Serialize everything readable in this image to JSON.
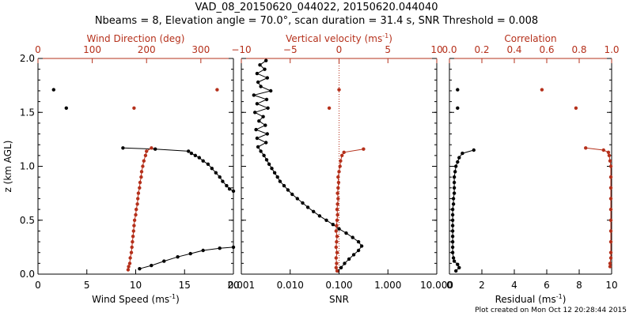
{
  "header": {
    "title": "VAD_08_20150620_044022, 20150620.044040",
    "subtitle": "Nbeams = 8, Elevation angle = 70.0°, scan duration = 31.4 s, SNR Threshold = 0.008"
  },
  "footer": "Plot created on Mon Oct 12 20:28:44 2015",
  "colors": {
    "black": "#000000",
    "red": "#b5301b"
  },
  "chart_data": [
    {
      "panel": "wind",
      "type": "scatter",
      "ylabel": "z (km AGL)",
      "ylim": [
        0,
        2
      ],
      "yticks": [
        "0.0",
        "0.5",
        "1.0",
        "1.5",
        "2.0"
      ],
      "x_bottom": {
        "label": "Wind Speed (ms",
        "label_sup": "-1",
        "label_end": ")",
        "lim": [
          0,
          20
        ],
        "ticks": [
          "0",
          "5",
          "10",
          "15",
          "20"
        ]
      },
      "x_top": {
        "label": "Wind Direction (deg)",
        "lim": [
          0,
          360
        ],
        "ticks": [
          "0",
          "100",
          "200",
          "300"
        ]
      },
      "series": [
        {
          "axis": "bottom",
          "color": "#000000",
          "connected": true,
          "name": "",
          "z": [
            0.05,
            0.08,
            0.12,
            0.16,
            0.19,
            0.22,
            0.24,
            0.25
          ],
          "x": [
            10.4,
            11.6,
            12.9,
            14.3,
            15.6,
            16.9,
            18.6,
            20.0
          ]
        },
        {
          "axis": "bottom",
          "color": "#000000",
          "connected": true,
          "name": "",
          "z": [
            0.77,
            0.79,
            0.82,
            0.86,
            0.9,
            0.94,
            0.98,
            1.02,
            1.05,
            1.08,
            1.1,
            1.12,
            1.14,
            1.16,
            1.17
          ],
          "x": [
            20.0,
            19.6,
            19.3,
            18.9,
            18.6,
            18.2,
            17.8,
            17.4,
            16.9,
            16.5,
            16.1,
            15.7,
            15.4,
            12.0,
            8.7
          ]
        },
        {
          "axis": "bottom",
          "color": "#000000",
          "connected": false,
          "name": "",
          "z": [
            1.71,
            1.54
          ],
          "x": [
            1.6,
            2.9
          ]
        },
        {
          "axis": "top",
          "color": "#b5301b",
          "connected": true,
          "name": "",
          "z": [
            0.04,
            0.07,
            0.1,
            0.15,
            0.2,
            0.25,
            0.3,
            0.35,
            0.4,
            0.45,
            0.5,
            0.55,
            0.6,
            0.65,
            0.7,
            0.75,
            0.8,
            0.85,
            0.9,
            0.95,
            1.0,
            1.05,
            1.1,
            1.14,
            1.17
          ],
          "x": [
            166,
            167,
            169,
            170,
            172,
            173,
            174,
            175,
            176,
            177,
            178,
            180,
            181,
            183,
            184,
            185,
            187,
            188,
            190,
            191,
            193,
            195,
            198,
            200,
            209
          ]
        },
        {
          "axis": "top",
          "color": "#b5301b",
          "connected": false,
          "name": "",
          "z": [
            1.71,
            1.54
          ],
          "x": [
            330,
            177
          ]
        }
      ]
    },
    {
      "panel": "velocity",
      "type": "scatter",
      "ylim": [
        0,
        2
      ],
      "x_bottom": {
        "label": "SNR",
        "scale": "log",
        "lim": [
          0.001,
          10
        ],
        "ticks": [
          "0.001",
          "0.010",
          "0.100",
          "1.000",
          "10.000"
        ]
      },
      "x_top": {
        "label": "Vertical velocity (ms",
        "label_sup": "-1",
        "label_end": ")",
        "lim": [
          -10,
          10
        ],
        "ticks": [
          "−10",
          "−5",
          "0",
          "5",
          "10"
        ],
        "zero_line": true
      },
      "series": [
        {
          "axis": "bottom",
          "color": "#000000",
          "connected": true,
          "name": "",
          "z": [
            0.03,
            0.06,
            0.1,
            0.14,
            0.18,
            0.22,
            0.26,
            0.3,
            0.34,
            0.38,
            0.42,
            0.46,
            0.5,
            0.54,
            0.58,
            0.62,
            0.66,
            0.7,
            0.74,
            0.78,
            0.82,
            0.86,
            0.9,
            0.94,
            0.98,
            1.02,
            1.06,
            1.1,
            1.14,
            1.18,
            1.22,
            1.26,
            1.3,
            1.34,
            1.38,
            1.42,
            1.46,
            1.5,
            1.54,
            1.58,
            1.62,
            1.66,
            1.7,
            1.74,
            1.78,
            1.82,
            1.86,
            1.9,
            1.94,
            1.98
          ],
          "x": [
            0.095,
            0.11,
            0.13,
            0.16,
            0.2,
            0.25,
            0.29,
            0.25,
            0.19,
            0.14,
            0.1,
            0.075,
            0.055,
            0.04,
            0.03,
            0.023,
            0.018,
            0.014,
            0.011,
            0.009,
            0.0075,
            0.0062,
            0.0055,
            0.0048,
            0.0042,
            0.0037,
            0.0033,
            0.0029,
            0.0025,
            0.0022,
            0.0032,
            0.0021,
            0.0034,
            0.002,
            0.0031,
            0.0023,
            0.0028,
            0.0019,
            0.0035,
            0.0021,
            0.0033,
            0.0018,
            0.004,
            0.0025,
            0.0022,
            0.0034,
            0.0021,
            0.003,
            0.0024,
            0.0032
          ]
        },
        {
          "axis": "top",
          "color": "#b5301b",
          "connected": true,
          "name": "",
          "z": [
            0.03,
            0.06,
            0.1,
            0.15,
            0.2,
            0.25,
            0.3,
            0.35,
            0.4,
            0.45,
            0.5,
            0.55,
            0.6,
            0.65,
            0.7,
            0.75,
            0.8,
            0.85,
            0.9,
            0.95,
            1.0,
            1.05,
            1.1,
            1.13,
            1.16
          ],
          "x": [
            -0.2,
            -0.3,
            -0.25,
            -0.3,
            -0.2,
            -0.3,
            -0.25,
            -0.2,
            -0.3,
            -0.25,
            -0.2,
            -0.15,
            -0.2,
            -0.15,
            -0.1,
            -0.15,
            -0.1,
            -0.05,
            -0.1,
            0.0,
            0.1,
            0.15,
            0.3,
            0.5,
            2.5
          ]
        },
        {
          "axis": "top",
          "color": "#b5301b",
          "connected": false,
          "name": "",
          "z": [
            1.71,
            1.54
          ],
          "x": [
            0.0,
            -1.0
          ]
        }
      ]
    },
    {
      "panel": "residual",
      "type": "scatter",
      "ylim": [
        0,
        2
      ],
      "x_bottom": {
        "label": "Residual (ms",
        "label_sup": "-1",
        "label_end": ")",
        "lim": [
          0,
          10
        ],
        "ticks": [
          "0",
          "2",
          "4",
          "6",
          "8",
          "10"
        ]
      },
      "x_top": {
        "label": "Correlation",
        "lim": [
          0,
          1
        ],
        "ticks": [
          "0.0",
          "0.2",
          "0.4",
          "0.6",
          "0.8",
          "1.0"
        ]
      },
      "series": [
        {
          "axis": "bottom",
          "color": "#000000",
          "connected": true,
          "name": "",
          "z": [
            0.03,
            0.06,
            0.09,
            0.12,
            0.15,
            0.2,
            0.25,
            0.3,
            0.35,
            0.4,
            0.45,
            0.5,
            0.55,
            0.6,
            0.65,
            0.7,
            0.75,
            0.8,
            0.85,
            0.9,
            0.95,
            1.0,
            1.04,
            1.08,
            1.12,
            1.15
          ],
          "x": [
            0.4,
            0.6,
            0.5,
            0.3,
            0.25,
            0.2,
            0.2,
            0.2,
            0.2,
            0.2,
            0.2,
            0.2,
            0.2,
            0.2,
            0.25,
            0.25,
            0.3,
            0.3,
            0.3,
            0.3,
            0.35,
            0.4,
            0.5,
            0.6,
            0.8,
            1.5
          ]
        },
        {
          "axis": "bottom",
          "color": "#000000",
          "connected": false,
          "name": "",
          "z": [
            1.71,
            1.54
          ],
          "x": [
            0.5,
            0.5
          ]
        },
        {
          "axis": "top",
          "color": "#b5301b",
          "connected": true,
          "name": "",
          "z": [
            0.07,
            0.1,
            0.15,
            0.2,
            0.3,
            0.4,
            0.5,
            0.6,
            0.7,
            0.8,
            0.9,
            1.0,
            1.05,
            1.1,
            1.13,
            1.15,
            1.17
          ],
          "x": [
            0.99,
            0.99,
            0.995,
            0.995,
            0.995,
            0.995,
            0.995,
            0.995,
            0.995,
            0.995,
            0.995,
            0.995,
            0.99,
            0.985,
            0.98,
            0.95,
            0.84
          ]
        },
        {
          "axis": "top",
          "color": "#b5301b",
          "connected": false,
          "name": "",
          "z": [
            1.71,
            1.54
          ],
          "x": [
            0.57,
            0.78
          ]
        }
      ]
    }
  ]
}
